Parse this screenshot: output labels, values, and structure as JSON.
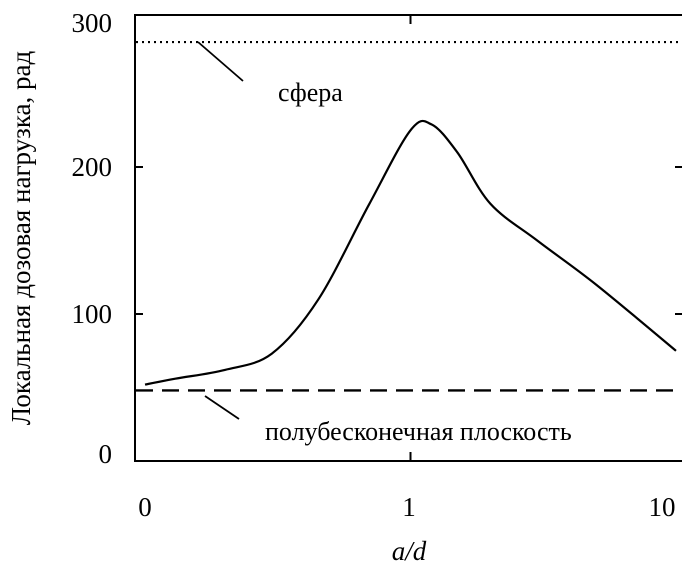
{
  "chart_data": {
    "type": "line",
    "xlabel": "a/d",
    "ylabel": "Локальная дозовая нагрузка, рад",
    "x_scale": "log",
    "x_ticks": [
      "0",
      "1",
      "10"
    ],
    "y_ticks": [
      "0",
      "100",
      "200",
      "300"
    ],
    "ylim": [
      0,
      300
    ],
    "grid": false,
    "annotations": [
      "сфера",
      "полубесконечная плоскость"
    ],
    "series": [
      {
        "style": "solid",
        "points": [
          [
            0.1,
            52
          ],
          [
            0.13,
            56
          ],
          [
            0.2,
            62
          ],
          [
            0.3,
            73
          ],
          [
            0.45,
            110
          ],
          [
            0.7,
            175
          ],
          [
            1.0,
            225
          ],
          [
            1.2,
            229
          ],
          [
            1.5,
            210
          ],
          [
            2.0,
            175
          ],
          [
            3.0,
            150
          ],
          [
            5.0,
            120
          ],
          [
            10.0,
            75
          ]
        ]
      },
      {
        "style": "dotted",
        "constant": 285,
        "label": "сфера"
      },
      {
        "style": "dashed",
        "constant": 48,
        "label": "полубесконечная плоскость"
      }
    ]
  }
}
